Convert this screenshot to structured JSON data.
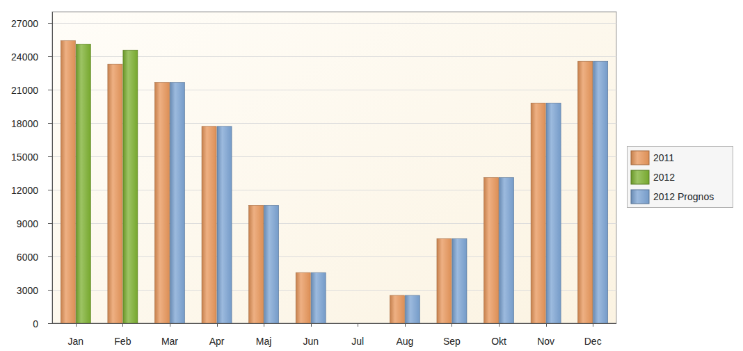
{
  "chart_data": {
    "type": "bar",
    "categories": [
      "Jan",
      "Feb",
      "Mar",
      "Apr",
      "Maj",
      "Jun",
      "Jul",
      "Aug",
      "Sep",
      "Okt",
      "Nov",
      "Dec"
    ],
    "series": [
      {
        "name": "2011",
        "color": "#e8965a",
        "values": [
          25400,
          23300,
          21650,
          17700,
          10600,
          4550,
          0,
          2500,
          7600,
          13100,
          19800,
          23550
        ]
      },
      {
        "name": "2012",
        "color": "#7cb030",
        "values": [
          25100,
          24550,
          null,
          null,
          null,
          null,
          null,
          null,
          null,
          null,
          null,
          null
        ]
      },
      {
        "name": "2012 Prognos",
        "color": "#7ba3d3",
        "values": [
          null,
          null,
          21650,
          17700,
          10600,
          4550,
          0,
          2500,
          7600,
          13100,
          19800,
          23550
        ]
      }
    ],
    "ylim": [
      0,
      28000
    ],
    "yticks": [
      0,
      3000,
      6000,
      9000,
      12000,
      15000,
      18000,
      21000,
      24000,
      27000
    ],
    "grid": true,
    "legend": "right"
  }
}
